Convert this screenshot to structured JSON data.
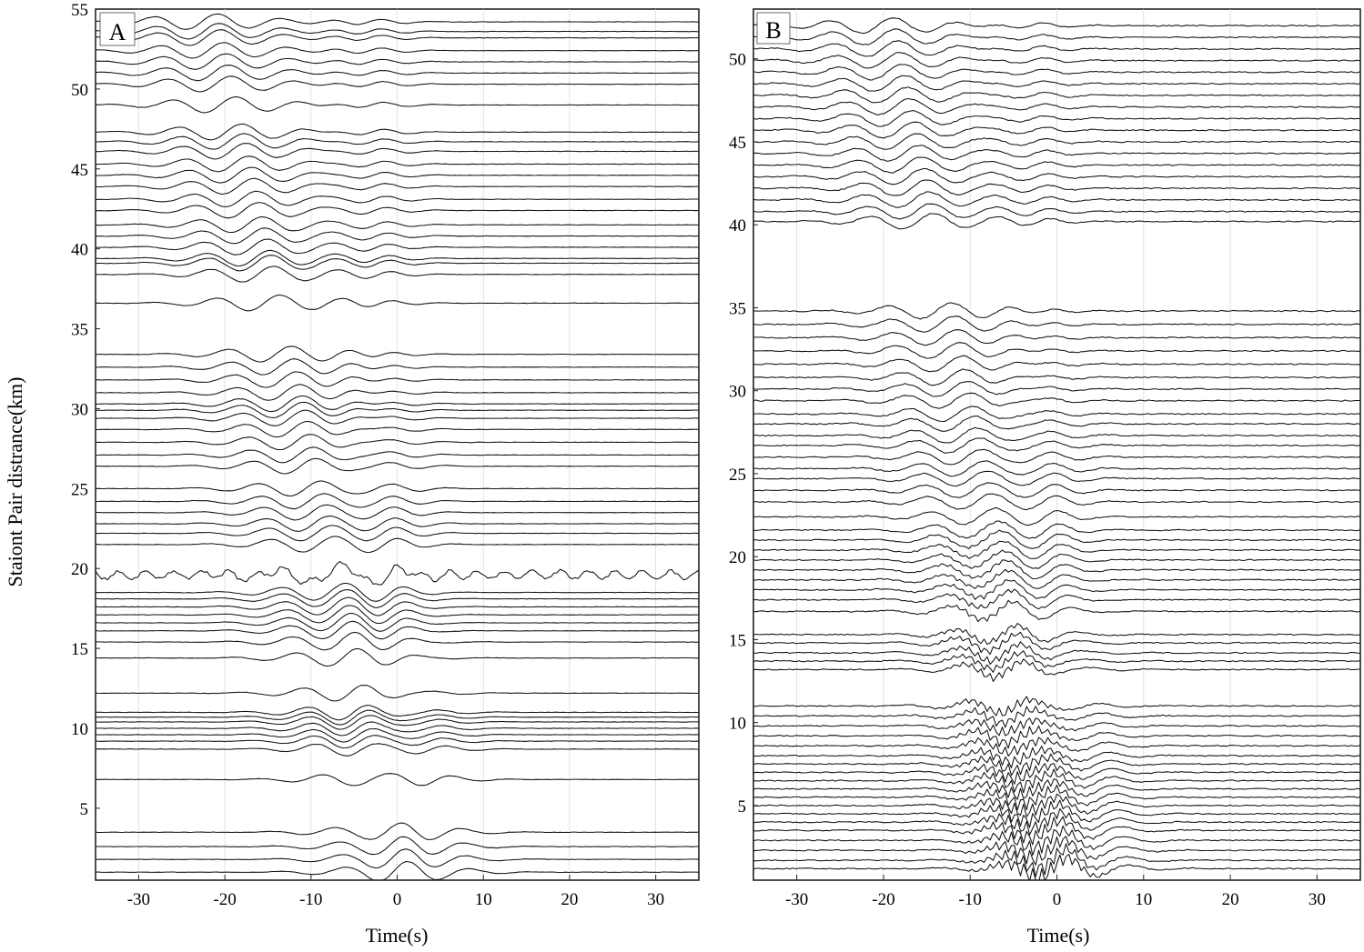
{
  "ylabel": "Staiont Pair distrance(km)",
  "chart_data": [
    {
      "type": "line",
      "panel_label": "A",
      "xlabel": "Time(s)",
      "xlim": [
        -35,
        35
      ],
      "ylim": [
        0.5,
        55
      ],
      "xticks": [
        -30,
        -20,
        -10,
        0,
        10,
        20,
        30
      ],
      "yticks": [
        5,
        10,
        15,
        20,
        25,
        30,
        35,
        40,
        45,
        50,
        55
      ],
      "grid": true,
      "trace_distances_km": [
        1.0,
        1.8,
        2.6,
        3.5,
        6.8,
        8.7,
        9.2,
        9.6,
        10.0,
        10.4,
        10.7,
        11.0,
        12.2,
        14.4,
        15.4,
        16.1,
        16.6,
        17.1,
        17.6,
        18.1,
        18.5,
        19.6,
        21.5,
        22.2,
        22.8,
        23.5,
        24.2,
        25.0,
        26.4,
        27.1,
        27.9,
        28.7,
        29.4,
        29.9,
        30.3,
        31.0,
        31.8,
        32.6,
        33.4,
        36.6,
        38.4,
        39.1,
        39.4,
        40.1,
        40.8,
        41.5,
        42.4,
        43.1,
        43.9,
        44.6,
        45.3,
        46.1,
        46.7,
        47.3,
        49.0,
        50.3,
        51.0,
        51.7,
        52.4,
        53.2,
        53.6,
        54.2
      ],
      "moveout_reference": [
        {
          "distance_km": 1.0,
          "time_s": 0.0
        },
        {
          "distance_km": 54.2,
          "time_s": -22.0
        }
      ]
    },
    {
      "type": "line",
      "panel_label": "B",
      "xlabel": "Time(s)",
      "xlim": [
        -35,
        35
      ],
      "ylim": [
        0.5,
        53
      ],
      "xticks": [
        -30,
        -20,
        -10,
        0,
        10,
        20,
        30
      ],
      "yticks": [
        5,
        10,
        15,
        20,
        25,
        30,
        35,
        40,
        45,
        50
      ],
      "grid": true,
      "trace_distances_km": [
        1.2,
        1.7,
        2.3,
        2.9,
        3.5,
        4.0,
        4.5,
        5.0,
        5.5,
        6.0,
        6.5,
        7.0,
        7.5,
        8.0,
        8.6,
        9.2,
        9.8,
        10.4,
        11.0,
        13.2,
        13.7,
        14.2,
        14.8,
        15.3,
        16.7,
        17.4,
        18.0,
        18.6,
        19.2,
        19.8,
        20.4,
        21.0,
        21.6,
        22.4,
        23.3,
        24.0,
        24.7,
        25.3,
        26.0,
        26.7,
        27.3,
        28.0,
        28.6,
        29.4,
        30.1,
        30.8,
        31.6,
        32.4,
        33.2,
        34.0,
        34.8,
        40.2,
        40.8,
        41.5,
        42.2,
        42.9,
        43.6,
        44.3,
        45.0,
        45.7,
        46.4,
        47.1,
        47.8,
        48.5,
        49.2,
        49.9,
        50.6,
        51.3,
        52.0
      ],
      "moveout_reference": [
        {
          "distance_km": 1.2,
          "time_s": 0.0
        },
        {
          "distance_km": 52.0,
          "time_s": -20.0
        }
      ]
    }
  ]
}
